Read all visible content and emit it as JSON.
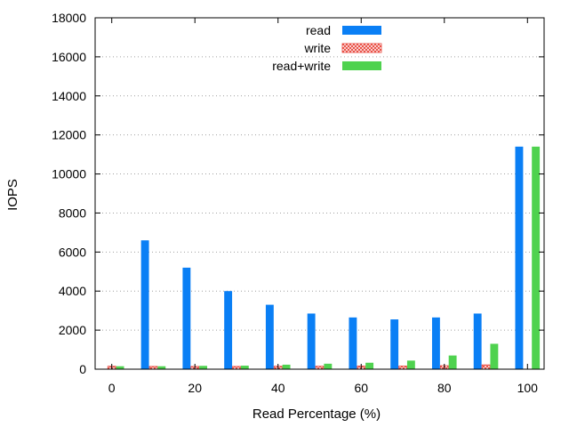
{
  "chart_data": {
    "type": "bar",
    "xlabel": "Read Percentage (%)",
    "ylabel": "IOPS",
    "ylim": [
      0,
      18000
    ],
    "yticks": [
      0,
      2000,
      4000,
      6000,
      8000,
      10000,
      12000,
      14000,
      16000,
      18000
    ],
    "xlim": [
      -4,
      104
    ],
    "xticks": [
      0,
      20,
      40,
      60,
      80,
      100
    ],
    "x": [
      0,
      10,
      20,
      30,
      40,
      50,
      60,
      70,
      80,
      90,
      100
    ],
    "grid": "horizontal dotted",
    "legend_position": "top-center",
    "series": [
      {
        "name": "read",
        "color": "#0a7ff5",
        "pattern": "solid",
        "values": [
          0,
          6600,
          5200,
          4000,
          3300,
          2850,
          2650,
          2550,
          2650,
          2850,
          11400
        ]
      },
      {
        "name": "write",
        "color": "#e8463c",
        "pattern": "crosshatch",
        "values": [
          150,
          140,
          140,
          140,
          150,
          150,
          160,
          160,
          180,
          220,
          0
        ]
      },
      {
        "name": "read+write",
        "color": "#4fd24f",
        "pattern": "solid",
        "values": [
          150,
          150,
          170,
          180,
          230,
          280,
          330,
          440,
          700,
          1300,
          11400
        ]
      }
    ]
  }
}
